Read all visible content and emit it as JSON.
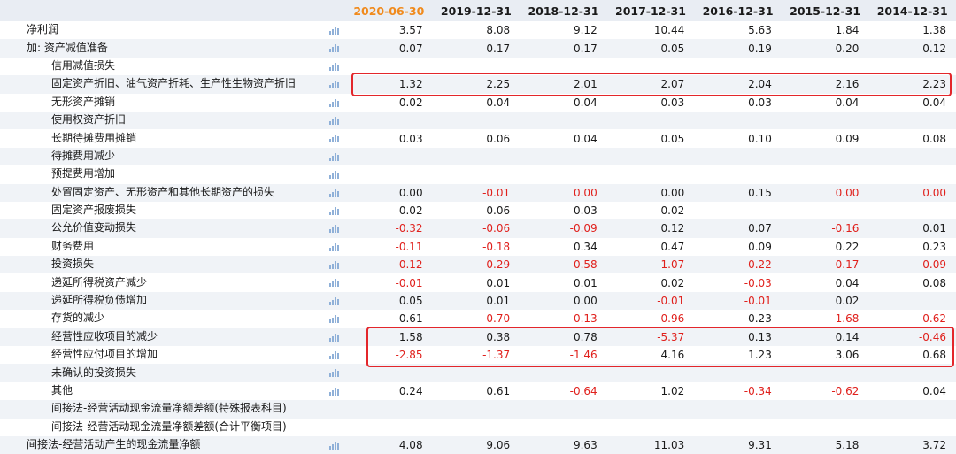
{
  "header": {
    "periods": [
      "2020-06-30",
      "2019-12-31",
      "2018-12-31",
      "2017-12-31",
      "2016-12-31",
      "2015-12-31",
      "2014-12-31"
    ],
    "highlight_index": 0
  },
  "rows": [
    {
      "label": "净利润",
      "indent": false,
      "chart": true,
      "values": [
        "3.57",
        "8.08",
        "9.12",
        "10.44",
        "5.63",
        "1.84",
        "1.38"
      ]
    },
    {
      "label": "加: 资产减值准备",
      "indent": false,
      "chart": true,
      "values": [
        "0.07",
        "0.17",
        "0.17",
        "0.05",
        "0.19",
        "0.20",
        "0.12"
      ]
    },
    {
      "label": "信用减值损失",
      "indent": true,
      "chart": true,
      "values": [
        "",
        "",
        "",
        "",
        "",
        "",
        ""
      ]
    },
    {
      "label": "固定资产折旧、油气资产折耗、生产性生物资产折旧",
      "indent": true,
      "chart": true,
      "values": [
        "1.32",
        "2.25",
        "2.01",
        "2.07",
        "2.04",
        "2.16",
        "2.23"
      ]
    },
    {
      "label": "无形资产摊销",
      "indent": true,
      "chart": true,
      "values": [
        "0.02",
        "0.04",
        "0.04",
        "0.03",
        "0.03",
        "0.04",
        "0.04"
      ]
    },
    {
      "label": "使用权资产折旧",
      "indent": true,
      "chart": true,
      "values": [
        "",
        "",
        "",
        "",
        "",
        "",
        ""
      ]
    },
    {
      "label": "长期待摊费用摊销",
      "indent": true,
      "chart": true,
      "values": [
        "0.03",
        "0.06",
        "0.04",
        "0.05",
        "0.10",
        "0.09",
        "0.08"
      ]
    },
    {
      "label": "待摊费用减少",
      "indent": true,
      "chart": true,
      "values": [
        "",
        "",
        "",
        "",
        "",
        "",
        ""
      ]
    },
    {
      "label": "预提费用增加",
      "indent": true,
      "chart": true,
      "values": [
        "",
        "",
        "",
        "",
        "",
        "",
        ""
      ]
    },
    {
      "label": "处置固定资产、无形资产和其他长期资产的损失",
      "indent": true,
      "chart": true,
      "values": [
        "0.00",
        "-0.01",
        "0.00",
        "0.00",
        "0.15",
        "0.00",
        "0.00"
      ],
      "red_values": [
        false,
        true,
        true,
        false,
        false,
        true,
        true
      ]
    },
    {
      "label": "固定资产报废损失",
      "indent": true,
      "chart": true,
      "values": [
        "0.02",
        "0.06",
        "0.03",
        "0.02",
        "",
        "",
        ""
      ]
    },
    {
      "label": "公允价值变动损失",
      "indent": true,
      "chart": true,
      "values": [
        "-0.32",
        "-0.06",
        "-0.09",
        "0.12",
        "0.07",
        "-0.16",
        "0.01"
      ]
    },
    {
      "label": "财务费用",
      "indent": true,
      "chart": true,
      "values": [
        "-0.11",
        "-0.18",
        "0.34",
        "0.47",
        "0.09",
        "0.22",
        "0.23"
      ]
    },
    {
      "label": "投资损失",
      "indent": true,
      "chart": true,
      "values": [
        "-0.12",
        "-0.29",
        "-0.58",
        "-1.07",
        "-0.22",
        "-0.17",
        "-0.09"
      ]
    },
    {
      "label": "递延所得税资产减少",
      "indent": true,
      "chart": true,
      "values": [
        "-0.01",
        "0.01",
        "0.01",
        "0.02",
        "-0.03",
        "0.04",
        "0.08"
      ]
    },
    {
      "label": "递延所得税负债增加",
      "indent": true,
      "chart": true,
      "values": [
        "0.05",
        "0.01",
        "0.00",
        "-0.01",
        "-0.01",
        "0.02",
        ""
      ]
    },
    {
      "label": "存货的减少",
      "indent": true,
      "chart": true,
      "values": [
        "0.61",
        "-0.70",
        "-0.13",
        "-0.96",
        "0.23",
        "-1.68",
        "-0.62"
      ]
    },
    {
      "label": "经营性应收项目的减少",
      "indent": true,
      "chart": true,
      "values": [
        "1.58",
        "0.38",
        "0.78",
        "-5.37",
        "0.13",
        "0.14",
        "-0.46"
      ]
    },
    {
      "label": "经营性应付项目的增加",
      "indent": true,
      "chart": true,
      "values": [
        "-2.85",
        "-1.37",
        "-1.46",
        "4.16",
        "1.23",
        "3.06",
        "0.68"
      ]
    },
    {
      "label": "未确认的投资损失",
      "indent": true,
      "chart": true,
      "values": [
        "",
        "",
        "",
        "",
        "",
        "",
        ""
      ]
    },
    {
      "label": "其他",
      "indent": true,
      "chart": true,
      "values": [
        "0.24",
        "0.61",
        "-0.64",
        "1.02",
        "-0.34",
        "-0.62",
        "0.04"
      ]
    },
    {
      "label": "间接法-经营活动现金流量净额差额(特殊报表科目)",
      "indent": true,
      "chart": false,
      "values": [
        "",
        "",
        "",
        "",
        "",
        "",
        ""
      ]
    },
    {
      "label": "间接法-经营活动现金流量净额差额(合计平衡项目)",
      "indent": true,
      "chart": false,
      "values": [
        "",
        "",
        "",
        "",
        "",
        "",
        ""
      ]
    },
    {
      "label": "间接法-经营活动产生的现金流量净额",
      "indent": false,
      "chart": true,
      "values": [
        "4.08",
        "9.06",
        "9.63",
        "11.03",
        "9.31",
        "5.18",
        "3.72"
      ]
    }
  ],
  "colors": {
    "highlight": "#f08a1c",
    "negative": "#e0201c",
    "annotation_box": "#e3262b",
    "chart_icon": "#8fb0d8"
  },
  "icons": {
    "row_chart": "bar-chart-icon"
  }
}
